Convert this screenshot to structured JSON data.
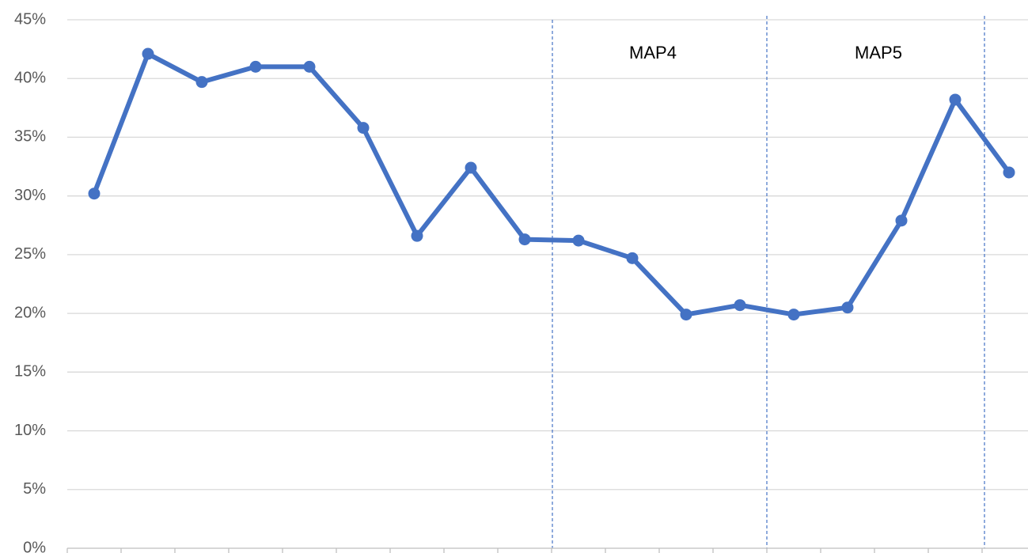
{
  "chart_data": {
    "type": "line",
    "categories": [
      null,
      null,
      null,
      null,
      null,
      null,
      null,
      null,
      null,
      null,
      null,
      null,
      null,
      null,
      null,
      null,
      null,
      null
    ],
    "series": [
      {
        "color": "#4472c4",
        "values": [
          30.2,
          42.1,
          39.7,
          41,
          41,
          35.8,
          26.6,
          32.4,
          26.3,
          26.2,
          24.7,
          19.9,
          20.7,
          19.9,
          20.5,
          27.9,
          38.2,
          32.0
        ]
      }
    ],
    "ylim": [
      0,
      45
    ],
    "yticks": [
      {
        "value": 0,
        "label": "0%"
      },
      {
        "value": 5,
        "label": "5%"
      },
      {
        "value": 10,
        "label": "10%"
      },
      {
        "value": 15,
        "label": "15%"
      },
      {
        "value": 20,
        "label": "20%"
      },
      {
        "value": 25,
        "label": "25%"
      },
      {
        "value": 30,
        "label": "30%"
      },
      {
        "value": 35,
        "label": "35%"
      },
      {
        "value": 40,
        "label": "40%"
      },
      {
        "value": 45,
        "label": "45%"
      }
    ],
    "grid": true,
    "annotations": [
      "MAP4",
      "MAP5"
    ]
  }
}
